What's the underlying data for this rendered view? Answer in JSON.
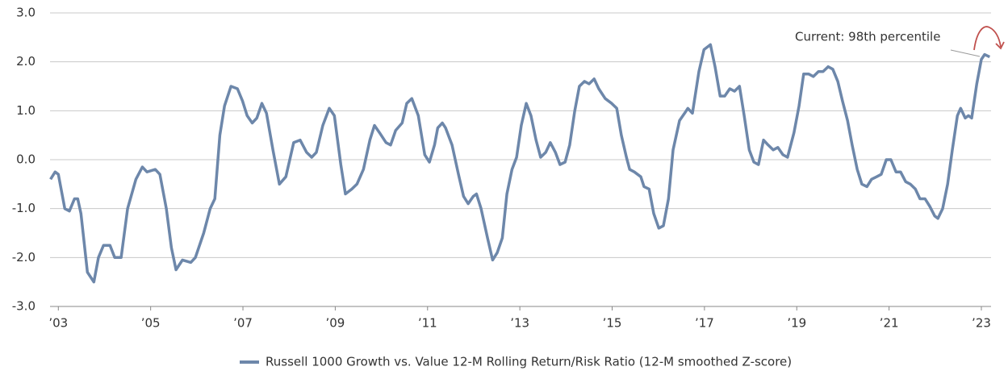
{
  "chart_data": {
    "type": "line",
    "annotation": "Current: 98th percentile",
    "x": [
      2002.83,
      2002.93,
      2003.0,
      2003.14,
      2003.24,
      2003.35,
      2003.42,
      2003.49,
      2003.63,
      2003.77,
      2003.87,
      2003.98,
      2004.12,
      2004.22,
      2004.36,
      2004.5,
      2004.68,
      2004.82,
      2004.92,
      2005.1,
      2005.2,
      2005.34,
      2005.45,
      2005.55,
      2005.69,
      2005.87,
      2005.97,
      2006.15,
      2006.29,
      2006.39,
      2006.5,
      2006.6,
      2006.74,
      2006.88,
      2006.99,
      2007.09,
      2007.2,
      2007.3,
      2007.41,
      2007.51,
      2007.65,
      2007.79,
      2007.93,
      2008.1,
      2008.24,
      2008.38,
      2008.49,
      2008.59,
      2008.73,
      2008.87,
      2008.98,
      2009.12,
      2009.22,
      2009.36,
      2009.47,
      2009.61,
      2009.75,
      2009.85,
      2009.96,
      2010.1,
      2010.2,
      2010.31,
      2010.45,
      2010.55,
      2010.66,
      2010.8,
      2010.94,
      2011.04,
      2011.15,
      2011.22,
      2011.32,
      2011.39,
      2011.53,
      2011.67,
      2011.78,
      2011.88,
      2011.99,
      2012.06,
      2012.16,
      2012.3,
      2012.41,
      2012.51,
      2012.62,
      2012.72,
      2012.83,
      2012.93,
      2013.03,
      2013.14,
      2013.24,
      2013.35,
      2013.45,
      2013.56,
      2013.66,
      2013.77,
      2013.87,
      2013.98,
      2014.08,
      2014.19,
      2014.29,
      2014.4,
      2014.5,
      2014.61,
      2014.71,
      2014.85,
      2014.99,
      2015.1,
      2015.2,
      2015.31,
      2015.38,
      2015.48,
      2015.62,
      2015.69,
      2015.8,
      2015.9,
      2016.01,
      2016.11,
      2016.22,
      2016.32,
      2016.46,
      2016.57,
      2016.64,
      2016.74,
      2016.88,
      2016.99,
      2017.13,
      2017.23,
      2017.34,
      2017.44,
      2017.55,
      2017.65,
      2017.76,
      2017.86,
      2017.97,
      2018.07,
      2018.17,
      2018.28,
      2018.38,
      2018.49,
      2018.59,
      2018.7,
      2018.8,
      2018.94,
      2019.05,
      2019.15,
      2019.26,
      2019.36,
      2019.47,
      2019.57,
      2019.68,
      2019.78,
      2019.89,
      2019.99,
      2020.1,
      2020.2,
      2020.31,
      2020.41,
      2020.52,
      2020.62,
      2020.73,
      2020.83,
      2020.94,
      2021.04,
      2021.15,
      2021.25,
      2021.36,
      2021.46,
      2021.57,
      2021.67,
      2021.78,
      2021.88,
      2021.99,
      2022.06,
      2022.16,
      2022.27,
      2022.37,
      2022.48,
      2022.55,
      2022.65,
      2022.72,
      2022.79,
      2022.9,
      2023.0,
      2023.07,
      2023.18
    ],
    "series": [
      {
        "name": "Russell 1000 Growth vs. Value 12-M Rolling Return/Risk Ratio (12-M smoothed Z-score)",
        "color": "#6d87aa",
        "values": [
          -0.4,
          -0.25,
          -0.3,
          -1.0,
          -1.05,
          -0.8,
          -0.8,
          -1.1,
          -2.3,
          -2.5,
          -2.0,
          -1.75,
          -1.75,
          -2.0,
          -2.0,
          -1.0,
          -0.4,
          -0.15,
          -0.25,
          -0.2,
          -0.3,
          -1.0,
          -1.8,
          -2.25,
          -2.05,
          -2.1,
          -2.0,
          -1.5,
          -1.0,
          -0.8,
          0.5,
          1.1,
          1.5,
          1.45,
          1.2,
          0.9,
          0.75,
          0.85,
          1.15,
          0.95,
          0.2,
          -0.5,
          -0.35,
          0.35,
          0.4,
          0.15,
          0.05,
          0.15,
          0.7,
          1.05,
          0.9,
          -0.1,
          -0.7,
          -0.6,
          -0.5,
          -0.2,
          0.4,
          0.7,
          0.55,
          0.35,
          0.3,
          0.6,
          0.75,
          1.15,
          1.25,
          0.9,
          0.1,
          -0.05,
          0.3,
          0.65,
          0.75,
          0.65,
          0.3,
          -0.3,
          -0.75,
          -0.9,
          -0.75,
          -0.7,
          -1.0,
          -1.6,
          -2.05,
          -1.9,
          -1.6,
          -0.7,
          -0.2,
          0.05,
          0.7,
          1.15,
          0.9,
          0.4,
          0.05,
          0.15,
          0.35,
          0.15,
          -0.1,
          -0.05,
          0.3,
          1.0,
          1.5,
          1.6,
          1.55,
          1.65,
          1.45,
          1.25,
          1.15,
          1.05,
          0.5,
          0.05,
          -0.2,
          -0.25,
          -0.35,
          -0.55,
          -0.6,
          -1.1,
          -1.4,
          -1.35,
          -0.8,
          0.2,
          0.8,
          0.95,
          1.05,
          0.95,
          1.8,
          2.25,
          2.35,
          1.9,
          1.3,
          1.3,
          1.45,
          1.4,
          1.5,
          0.9,
          0.2,
          -0.05,
          -0.1,
          0.4,
          0.3,
          0.2,
          0.25,
          0.1,
          0.05,
          0.55,
          1.1,
          1.75,
          1.75,
          1.7,
          1.8,
          1.8,
          1.9,
          1.85,
          1.6,
          1.2,
          0.8,
          0.3,
          -0.2,
          -0.5,
          -0.55,
          -0.4,
          -0.35,
          -0.3,
          0.0,
          0.0,
          -0.25,
          -0.25,
          -0.45,
          -0.5,
          -0.6,
          -0.8,
          -0.8,
          -0.95,
          -1.15,
          -1.2,
          -1.0,
          -0.5,
          0.2,
          0.9,
          1.05,
          0.85,
          0.9,
          0.85,
          1.55,
          2.05,
          2.15,
          2.1
        ]
      }
    ],
    "xlim": [
      2002.82,
      2023.21
    ],
    "xticks": [
      {
        "value": 2003,
        "label": "’03"
      },
      {
        "value": 2005,
        "label": "’05"
      },
      {
        "value": 2007,
        "label": "’07"
      },
      {
        "value": 2009,
        "label": "’09"
      },
      {
        "value": 2011,
        "label": "’11"
      },
      {
        "value": 2013,
        "label": "’13"
      },
      {
        "value": 2015,
        "label": "’15"
      },
      {
        "value": 2017,
        "label": "’17"
      },
      {
        "value": 2019,
        "label": "’19"
      },
      {
        "value": 2021,
        "label": "’21"
      },
      {
        "value": 2023,
        "label": "’23"
      }
    ],
    "ylim": [
      -3,
      3
    ],
    "yticks": [
      {
        "value": -3,
        "label": "-3.0"
      },
      {
        "value": -2,
        "label": "-2.0"
      },
      {
        "value": -1,
        "label": "-1.0"
      },
      {
        "value": 0,
        "label": "0.0"
      },
      {
        "value": 1,
        "label": "1.0"
      },
      {
        "value": 2,
        "label": "2.0"
      },
      {
        "value": 3,
        "label": "3.0"
      }
    ],
    "grid": true
  }
}
